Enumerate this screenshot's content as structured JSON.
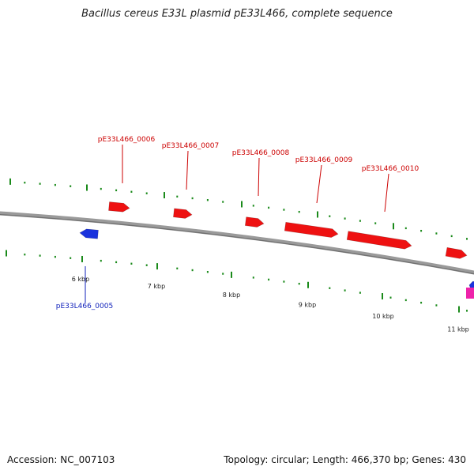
{
  "title": "Bacillus cereus E33L plasmid pE33L466, complete sequence",
  "footer": {
    "accession": "Accession: NC_007103",
    "summary": "Topology: circular; Length: 466,370 bp; Genes: 430"
  },
  "colors": {
    "forward_gene": "#ee1111",
    "reverse_gene": "#1a33dd",
    "pink_gene": "#ee22aa",
    "forward_label": "#cc0000",
    "reverse_label": "#1122bb",
    "tick": "#1a8a1a",
    "backbone": "#808080"
  },
  "scale_labels": [
    "6 kbp",
    "7 kbp",
    "8 kbp",
    "9 kbp",
    "10 kbp",
    "11 kbp"
  ],
  "genes": [
    {
      "label": "pE33L466_0005",
      "strand": "reverse"
    },
    {
      "label": "pE33L466_0006",
      "strand": "forward"
    },
    {
      "label": "pE33L466_0007",
      "strand": "forward"
    },
    {
      "label": "pE33L466_0008",
      "strand": "forward"
    },
    {
      "label": "pE33L466_0009",
      "strand": "forward"
    },
    {
      "label": "pE33L466_0010",
      "strand": "forward"
    }
  ]
}
